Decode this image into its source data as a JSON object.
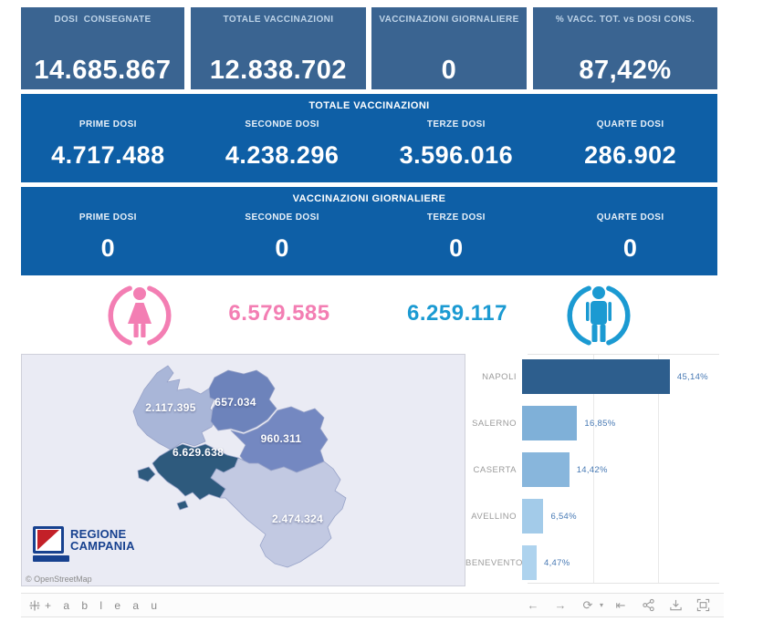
{
  "theme": {
    "kpi_bg": "#3A6491",
    "band_bg": "#0E5FA6",
    "kpi_label_color": "#BDD3E8",
    "female_color": "#F37EB3",
    "male_color": "#1B9AD2",
    "map_bg": "#EAEBF4",
    "bar_value_color": "#4779B4",
    "bar_category_color": "#9B9B9B"
  },
  "kpis": [
    {
      "label": "DOSI  CONSEGNATE",
      "value": "14.685.867"
    },
    {
      "label": "TOTALE VACCINAZIONI",
      "value": "12.838.702"
    },
    {
      "label": "VACCINAZIONI GIORNALIERE",
      "value": "0"
    },
    {
      "label": "% VACC. TOT. vs DOSI CONS.",
      "value": "87,42%"
    }
  ],
  "totals_band": {
    "title": "TOTALE VACCINAZIONI",
    "items": [
      {
        "label": "PRIME DOSI",
        "value": "4.717.488"
      },
      {
        "label": "SECONDE DOSI",
        "value": "4.238.296"
      },
      {
        "label": "TERZE DOSI",
        "value": "3.596.016"
      },
      {
        "label": "QUARTE DOSI",
        "value": "286.902"
      }
    ]
  },
  "daily_band": {
    "title": "VACCINAZIONI GIORNALIERE",
    "items": [
      {
        "label": "PRIME DOSI",
        "value": "0"
      },
      {
        "label": "SECONDE DOSI",
        "value": "0"
      },
      {
        "label": "TERZE DOSI",
        "value": "0"
      },
      {
        "label": "QUARTE DOSI",
        "value": "0"
      }
    ]
  },
  "gender": {
    "female_value": "6.579.585",
    "male_value": "6.259.117"
  },
  "map": {
    "attribution": "© OpenStreetMap",
    "logo_line1": "REGIONE",
    "logo_line2": "CAMPANIA",
    "provinces": [
      {
        "name": "CASERTA",
        "value": "2.117.395",
        "color": "#A9B6D8"
      },
      {
        "name": "BENEVENTO",
        "value": "657.034",
        "color": "#6D83BB"
      },
      {
        "name": "AVELLINO",
        "value": "960.311",
        "color": "#7488C1"
      },
      {
        "name": "NAPOLI",
        "value": "6.629.638",
        "color": "#2E5A7D"
      },
      {
        "name": "SALERNO",
        "value": "2.474.324",
        "color": "#C2C9E2"
      }
    ]
  },
  "chart_data": {
    "type": "bar",
    "orientation": "horizontal",
    "categories": [
      "NAPOLI",
      "SALERNO",
      "CASERTA",
      "AVELLINO",
      "BENEVENTO"
    ],
    "values": [
      45.14,
      16.85,
      14.42,
      6.54,
      4.47
    ],
    "labels": [
      "45,14%",
      "16,85%",
      "14,42%",
      "6,54%",
      "4,47%"
    ],
    "bar_colors": [
      "#2D5E8D",
      "#7FB0D8",
      "#88B6DC",
      "#A3CBE9",
      "#AED3EE"
    ],
    "title": "",
    "xlabel": "",
    "ylabel": "",
    "xlim": [
      0,
      58
    ],
    "gridlines_pct": [
      20,
      40
    ],
    "legend": "none"
  },
  "toolbar": {
    "logo_text": "+ a b l e a u",
    "icons": [
      "undo",
      "redo",
      "replay",
      "skip-to-start",
      "share",
      "download",
      "fullscreen"
    ],
    "undo_glyph": "←",
    "redo_glyph": "→",
    "replay_glyph": "⟳",
    "caret_glyph": "▾",
    "skip_glyph": "⇤"
  }
}
